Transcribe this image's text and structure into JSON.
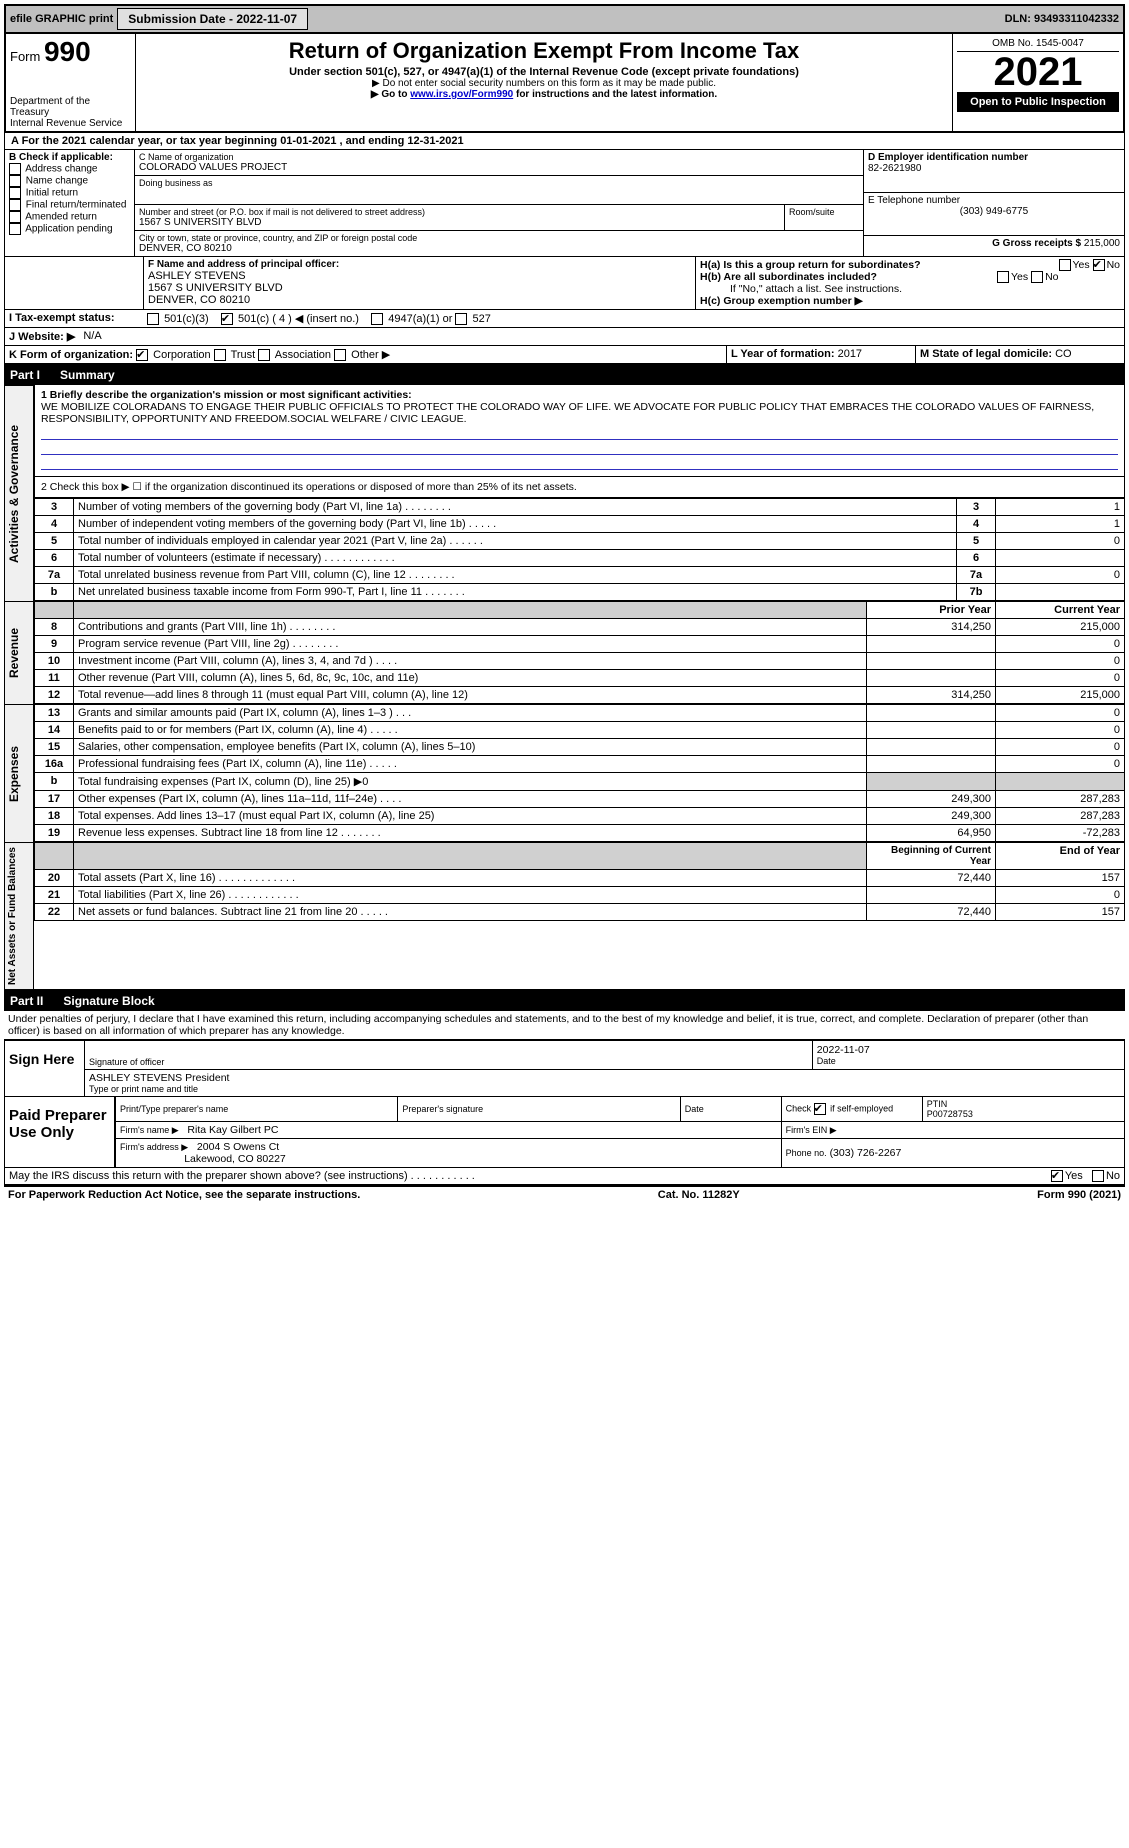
{
  "top": {
    "efile_label": "efile GRAPHIC print",
    "submission_label": "Submission Date - 2022-11-07",
    "dln_label": "DLN: 93493311042332"
  },
  "header": {
    "form_prefix": "Form",
    "form_number": "990",
    "title": "Return of Organization Exempt From Income Tax",
    "subtitle": "Under section 501(c), 527, or 4947(a)(1) of the Internal Revenue Code (except private foundations)",
    "note1": "▶ Do not enter social security numbers on this form as it may be made public.",
    "note2_pre": "▶ Go to ",
    "note2_link": "www.irs.gov/Form990",
    "note2_post": " for instructions and the latest information.",
    "dept": "Department of the Treasury",
    "irs": "Internal Revenue Service",
    "omb": "OMB No. 1545-0047",
    "year": "2021",
    "open": "Open to Public Inspection"
  },
  "lineA": "A For the 2021 calendar year, or tax year beginning 01-01-2021    , and ending 12-31-2021",
  "boxB": {
    "label": "B Check if applicable:",
    "items": [
      "Address change",
      "Name change",
      "Initial return",
      "Final return/terminated",
      "Amended return",
      "Application pending"
    ]
  },
  "boxC": {
    "name_label": "C Name of organization",
    "name": "COLORADO VALUES PROJECT",
    "dba_label": "Doing business as",
    "addr_label": "Number and street (or P.O. box if mail is not delivered to street address)",
    "room_label": "Room/suite",
    "addr": "1567 S UNIVERSITY BLVD",
    "city_label": "City or town, state or province, country, and ZIP or foreign postal code",
    "city": "DENVER, CO  80210"
  },
  "boxD": {
    "label": "D Employer identification number",
    "value": "82-2621980"
  },
  "boxE": {
    "label": "E Telephone number",
    "value": "(303) 949-6775"
  },
  "boxG": {
    "label": "G Gross receipts $",
    "value": "215,000"
  },
  "boxF": {
    "label": "F Name and address of principal officer:",
    "name": "ASHLEY STEVENS",
    "addr1": "1567 S UNIVERSITY BLVD",
    "addr2": "DENVER, CO  80210"
  },
  "boxH": {
    "a_label": "H(a)  Is this a group return for subordinates?",
    "b_label": "H(b)  Are all subordinates included?",
    "b_note": "If \"No,\" attach a list. See instructions.",
    "c_label": "H(c)  Group exemption number ▶",
    "yes": "Yes",
    "no": "No"
  },
  "boxI": {
    "label": "I   Tax-exempt status:",
    "opt1": "501(c)(3)",
    "opt2": "501(c) ( 4 ) ◀ (insert no.)",
    "opt3": "4947(a)(1) or",
    "opt4": "527"
  },
  "boxJ": {
    "label": "J   Website: ▶",
    "value": "N/A"
  },
  "boxK": {
    "label": "K Form of organization:",
    "o1": "Corporation",
    "o2": "Trust",
    "o3": "Association",
    "o4": "Other ▶"
  },
  "boxL": {
    "label": "L Year of formation:",
    "value": "2017"
  },
  "boxM": {
    "label": "M State of legal domicile:",
    "value": "CO"
  },
  "part1": {
    "label": "Part I",
    "title": "Summary"
  },
  "mission": {
    "label": "1  Briefly describe the organization's mission or most significant activities:",
    "text": "WE MOBILIZE COLORADANS TO ENGAGE THEIR PUBLIC OFFICIALS TO PROTECT THE COLORADO WAY OF LIFE. WE ADVOCATE FOR PUBLIC POLICY THAT EMBRACES THE COLORADO VALUES OF FAIRNESS, RESPONSIBILITY, OPPORTUNITY AND FREEDOM.SOCIAL WELFARE / CIVIC LEAGUE."
  },
  "act_gov": {
    "side_label": "Activities & Governance",
    "line2": "2   Check this box ▶ ☐  if the organization discontinued its operations or disposed of more than 25% of its net assets.",
    "rows": [
      {
        "n": "3",
        "t": "Number of voting members of the governing body (Part VI, line 1a)   .    .    .    .    .    .    .    .",
        "box": "3",
        "v": "1"
      },
      {
        "n": "4",
        "t": "Number of independent voting members of the governing body (Part VI, line 1b)  .    .    .    .    .",
        "box": "4",
        "v": "1"
      },
      {
        "n": "5",
        "t": "Total number of individuals employed in calendar year 2021 (Part V, line 2a)  .    .    .    .    .    .",
        "box": "5",
        "v": "0"
      },
      {
        "n": "6",
        "t": "Total number of volunteers (estimate if necessary)   .    .    .    .    .    .    .    .    .    .    .    .",
        "box": "6",
        "v": ""
      },
      {
        "n": "7a",
        "t": "Total unrelated business revenue from Part VIII, column (C), line 12  .    .    .    .    .    .    .    .",
        "box": "7a",
        "v": "0"
      },
      {
        "n": "b",
        "t": "Net unrelated business taxable income from Form 990-T, Part I, line 11  .    .    .    .    .    .    .",
        "box": "7b",
        "v": ""
      }
    ]
  },
  "rev": {
    "side_label": "Revenue",
    "h_prior": "Prior Year",
    "h_curr": "Current Year",
    "rows": [
      {
        "n": "8",
        "t": "Contributions and grants (Part VIII, line 1h)   .    .    .    .    .    .    .    .",
        "p": "314,250",
        "c": "215,000"
      },
      {
        "n": "9",
        "t": "Program service revenue (Part VIII, line 2g)   .    .    .    .    .    .    .    .",
        "p": "",
        "c": "0"
      },
      {
        "n": "10",
        "t": "Investment income (Part VIII, column (A), lines 3, 4, and 7d )   .    .    .    .",
        "p": "",
        "c": "0"
      },
      {
        "n": "11",
        "t": "Other revenue (Part VIII, column (A), lines 5, 6d, 8c, 9c, 10c, and 11e)",
        "p": "",
        "c": "0"
      },
      {
        "n": "12",
        "t": "Total revenue—add lines 8 through 11 (must equal Part VIII, column (A), line 12)",
        "p": "314,250",
        "c": "215,000"
      }
    ]
  },
  "exp": {
    "side_label": "Expenses",
    "rows": [
      {
        "n": "13",
        "t": "Grants and similar amounts paid (Part IX, column (A), lines 1–3 )  .    .    .",
        "p": "",
        "c": "0"
      },
      {
        "n": "14",
        "t": "Benefits paid to or for members (Part IX, column (A), line 4)  .    .    .    .    .",
        "p": "",
        "c": "0"
      },
      {
        "n": "15",
        "t": "Salaries, other compensation, employee benefits (Part IX, column (A), lines 5–10)",
        "p": "",
        "c": "0"
      },
      {
        "n": "16a",
        "t": "Professional fundraising fees (Part IX, column (A), line 11e)  .    .    .    .    .",
        "p": "",
        "c": "0"
      },
      {
        "n": "b",
        "t": "Total fundraising expenses (Part IX, column (D), line 25) ▶0",
        "p": null,
        "c": null
      },
      {
        "n": "17",
        "t": "Other expenses (Part IX, column (A), lines 11a–11d, 11f–24e)   .    .    .    .",
        "p": "249,300",
        "c": "287,283"
      },
      {
        "n": "18",
        "t": "Total expenses. Add lines 13–17 (must equal Part IX, column (A), line 25)",
        "p": "249,300",
        "c": "287,283"
      },
      {
        "n": "19",
        "t": "Revenue less expenses. Subtract line 18 from line 12  .    .    .    .    .    .    .",
        "p": "64,950",
        "c": "-72,283"
      }
    ]
  },
  "net": {
    "side_label": "Net Assets or Fund Balances",
    "h_beg": "Beginning of Current Year",
    "h_end": "End of Year",
    "rows": [
      {
        "n": "20",
        "t": "Total assets (Part X, line 16)  .    .    .    .    .    .    .    .    .    .    .    .    .",
        "p": "72,440",
        "c": "157"
      },
      {
        "n": "21",
        "t": "Total liabilities (Part X, line 26)  .    .    .    .    .    .    .    .    .    .    .    .",
        "p": "",
        "c": "0"
      },
      {
        "n": "22",
        "t": "Net assets or fund balances. Subtract line 21 from line 20  .    .    .    .    .",
        "p": "72,440",
        "c": "157"
      }
    ]
  },
  "part2": {
    "label": "Part II",
    "title": "Signature Block"
  },
  "sig_decl": "Under penalties of perjury, I declare that I have examined this return, including accompanying schedules and statements, and to the best of my knowledge and belief, it is true, correct, and complete. Declaration of preparer (other than officer) is based on all information of which preparer has any knowledge.",
  "sign": {
    "label": "Sign Here",
    "so": "Signature of officer",
    "date": "Date",
    "date_v": "2022-11-07",
    "name": "ASHLEY STEVENS  President",
    "typ": "Type or print name and title"
  },
  "paid": {
    "label": "Paid Preparer Use Only",
    "h1": "Print/Type preparer's name",
    "h2": "Preparer's signature",
    "h3": "Date",
    "h4_pre": "Check",
    "h4_post": "if self-employed",
    "h5": "PTIN",
    "ptin": "P00728753",
    "firm_name_l": "Firm's name    ▶",
    "firm_name": "Rita Kay Gilbert PC",
    "firm_ein_l": "Firm's EIN ▶",
    "firm_addr_l": "Firm's address ▶",
    "firm_addr": "2004 S Owens Ct",
    "firm_addr2": "Lakewood, CO  80227",
    "phone_l": "Phone no.",
    "phone": "(303) 726-2267"
  },
  "discuss": {
    "text": "May the IRS discuss this return with the preparer shown above? (see instructions)   .    .    .    .    .    .    .    .    .    .    .",
    "yes": "Yes",
    "no": "No"
  },
  "footer": {
    "l": "For Paperwork Reduction Act Notice, see the separate instructions.",
    "c": "Cat. No. 11282Y",
    "r": "Form 990 (2021)"
  }
}
